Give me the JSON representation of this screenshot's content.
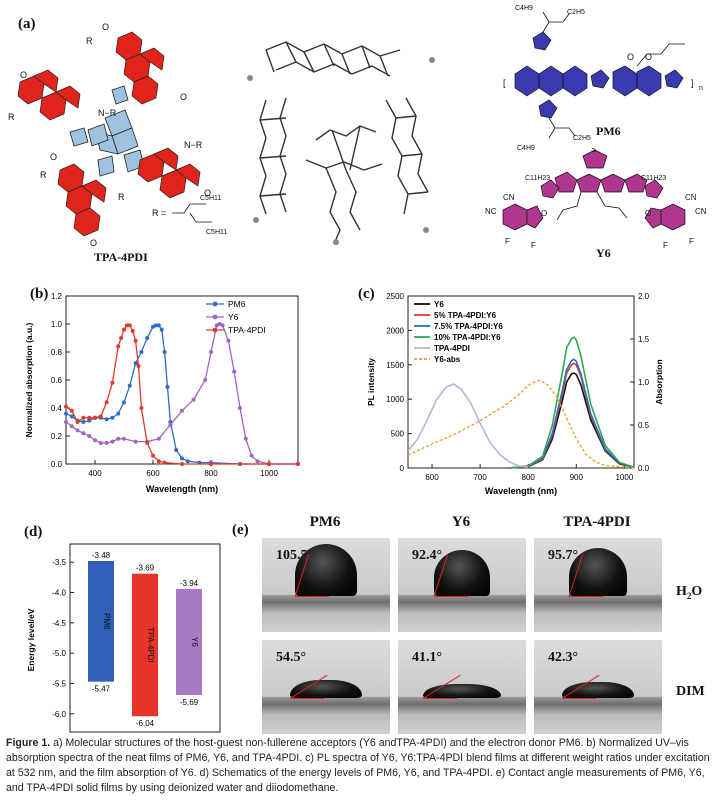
{
  "panels": {
    "a": "(a)",
    "b": "(b)",
    "c": "(c)",
    "d": "(d)",
    "e": "(e)"
  },
  "panel_a": {
    "tpa_label": "TPA-4PDI",
    "pm6_label": "PM6",
    "y6_label": "Y6",
    "r_group": "R =",
    "chain_a": "C5H11",
    "chain_b": "C5H11",
    "pm6_chain_1": "C4H9",
    "pm6_chain_2": "C2H5",
    "y6_chain_1": "C11H23",
    "y6_chain_2": "C11H23",
    "colors": {
      "pdi": "#e0241c",
      "pm6": "#3a3ab0",
      "y6": "#b0368f"
    }
  },
  "chart_data": [
    {
      "type": "line",
      "panel": "b",
      "xlabel": "Wavelength (nm)",
      "ylabel": "Normalized absorption (a.u.)",
      "xlim": [
        300,
        1100
      ],
      "ylim": [
        0,
        1.2
      ],
      "xticks": [
        "400",
        "600",
        "800",
        "1000"
      ],
      "yticks": [
        "0.0",
        "0.2",
        "0.4",
        "0.6",
        "0.8",
        "1.0",
        "1.2"
      ],
      "legend_position": "top-right",
      "series": [
        {
          "name": "PM6",
          "color": "#2e6bc4",
          "marker": "circle",
          "x": [
            300,
            320,
            340,
            360,
            380,
            400,
            420,
            440,
            460,
            480,
            500,
            520,
            540,
            560,
            580,
            600,
            610,
            620,
            630,
            640,
            650,
            660,
            680,
            700,
            720,
            760,
            800,
            900,
            1000,
            1100
          ],
          "y": [
            0.36,
            0.34,
            0.31,
            0.3,
            0.31,
            0.33,
            0.33,
            0.32,
            0.33,
            0.36,
            0.44,
            0.56,
            0.72,
            0.8,
            0.9,
            0.98,
            0.99,
            0.99,
            0.96,
            0.8,
            0.55,
            0.3,
            0.1,
            0.04,
            0.02,
            0.01,
            0.01,
            0.0,
            0.0,
            0.0
          ]
        },
        {
          "name": "Y6",
          "color": "#a066c4",
          "marker": "circle",
          "x": [
            300,
            320,
            340,
            360,
            380,
            400,
            420,
            440,
            460,
            480,
            500,
            540,
            580,
            620,
            660,
            700,
            740,
            780,
            800,
            820,
            830,
            840,
            860,
            880,
            900,
            920,
            940,
            960,
            1000,
            1100
          ],
          "y": [
            0.3,
            0.27,
            0.24,
            0.22,
            0.2,
            0.17,
            0.15,
            0.15,
            0.16,
            0.18,
            0.18,
            0.16,
            0.16,
            0.18,
            0.28,
            0.38,
            0.46,
            0.6,
            0.8,
            0.99,
            1.0,
            0.99,
            0.88,
            0.66,
            0.4,
            0.18,
            0.06,
            0.02,
            0.0,
            0.0
          ]
        },
        {
          "name": "TPA-4PDI",
          "color": "#e03a2a",
          "marker": "circle",
          "x": [
            300,
            320,
            340,
            360,
            380,
            400,
            420,
            440,
            460,
            480,
            490,
            500,
            510,
            520,
            530,
            540,
            550,
            560,
            580,
            600,
            620,
            640,
            700,
            800,
            900,
            1000,
            1100
          ],
          "y": [
            0.41,
            0.38,
            0.3,
            0.33,
            0.33,
            0.33,
            0.34,
            0.44,
            0.58,
            0.84,
            0.9,
            0.96,
            0.99,
            0.99,
            0.95,
            0.88,
            0.7,
            0.4,
            0.15,
            0.06,
            0.02,
            0.01,
            0.0,
            0.0,
            0.0,
            0.0,
            0.0
          ]
        }
      ]
    },
    {
      "type": "line",
      "panel": "c",
      "xlabel": "Wavelength (nm)",
      "ylabel": "PL intensity",
      "y2label": "Absorption",
      "xlim": [
        550,
        1020
      ],
      "ylim": [
        0,
        2500
      ],
      "y2lim": [
        0,
        2.0
      ],
      "xticks": [
        "600",
        "700",
        "800",
        "900",
        "1000"
      ],
      "yticks": [
        "0",
        "500",
        "1000",
        "1500",
        "2000",
        "2500"
      ],
      "y2ticks": [
        "0.0",
        "0.5",
        "1.0",
        "1.5",
        "2.0"
      ],
      "legend_position": "top-left",
      "series": [
        {
          "name": "Y6",
          "color": "#111111",
          "x": [
            760,
            800,
            830,
            850,
            870,
            880,
            890,
            895,
            900,
            910,
            930,
            960,
            990,
            1020
          ],
          "y": [
            0,
            20,
            120,
            420,
            950,
            1250,
            1370,
            1380,
            1360,
            1200,
            700,
            250,
            60,
            10
          ]
        },
        {
          "name": "5% TPA-4PDI:Y6",
          "color": "#e03a2a",
          "x": [
            760,
            800,
            830,
            850,
            870,
            880,
            890,
            895,
            900,
            910,
            930,
            960,
            990,
            1020
          ],
          "y": [
            0,
            25,
            130,
            470,
            1050,
            1380,
            1500,
            1520,
            1500,
            1320,
            760,
            270,
            70,
            10
          ]
        },
        {
          "name": "7.5% TPA-4PDI:Y6",
          "color": "#2e6bc4",
          "x": [
            760,
            800,
            830,
            850,
            870,
            880,
            890,
            895,
            900,
            910,
            930,
            960,
            990,
            1020
          ],
          "y": [
            0,
            25,
            140,
            500,
            1100,
            1430,
            1560,
            1580,
            1550,
            1360,
            790,
            280,
            70,
            10
          ]
        },
        {
          "name": "10% TPA-4PDI:Y6",
          "color": "#2fa84f",
          "x": [
            760,
            800,
            830,
            850,
            870,
            880,
            890,
            895,
            900,
            910,
            930,
            960,
            990,
            1020
          ],
          "y": [
            0,
            30,
            170,
            620,
            1350,
            1750,
            1880,
            1900,
            1860,
            1620,
            930,
            330,
            80,
            10
          ]
        },
        {
          "name": "TPA-4PDI",
          "color": "#b8b2dc",
          "x": [
            550,
            570,
            590,
            610,
            630,
            645,
            660,
            680,
            700,
            720,
            740,
            760,
            780,
            800
          ],
          "y": [
            250,
            420,
            700,
            1000,
            1180,
            1220,
            1150,
            950,
            650,
            380,
            200,
            90,
            30,
            10
          ]
        },
        {
          "name": "Y6-abs",
          "color": "#f29a2a",
          "dashed": true,
          "axis": "right",
          "x": [
            550,
            600,
            650,
            700,
            750,
            780,
            800,
            820,
            830,
            840,
            860,
            880,
            900,
            920,
            940,
            960,
            980,
            1000,
            1020
          ],
          "y": [
            0.15,
            0.28,
            0.4,
            0.55,
            0.72,
            0.85,
            0.96,
            1.02,
            1.0,
            0.97,
            0.82,
            0.58,
            0.34,
            0.16,
            0.07,
            0.03,
            0.02,
            0.01,
            0.0
          ]
        }
      ]
    },
    {
      "type": "bar",
      "panel": "d",
      "ylabel": "Energy level/eV",
      "ylim": [
        -6.3,
        -3.2
      ],
      "yticks": [
        "-3.5",
        "-4.0",
        "-4.5",
        "-5.0",
        "-5.5",
        "-6.0"
      ],
      "bars": [
        {
          "name": "PM6",
          "lumo": -3.48,
          "homo": -5.47,
          "lumo_label": "-3.48",
          "homo_label": "-5.47",
          "color": "#2f5fb8"
        },
        {
          "name": "TPA-4PDI",
          "lumo": -3.69,
          "homo": -6.04,
          "lumo_label": "-3.69",
          "homo_label": "-6.04",
          "color": "#e8332a"
        },
        {
          "name": "Y6",
          "lumo": -3.94,
          "homo": -5.69,
          "lumo_label": "-3.94",
          "homo_label": "-5.69",
          "color": "#a77ac2"
        }
      ]
    }
  ],
  "panel_e": {
    "columns": [
      "PM6",
      "Y6",
      "TPA-4PDI"
    ],
    "rows": [
      "H2O",
      "DIM"
    ],
    "angles": [
      [
        "105.5°",
        "92.4°",
        "95.7°"
      ],
      [
        "54.5°",
        "41.1°",
        "42.3°"
      ]
    ]
  },
  "caption": {
    "label": "Figure 1.",
    "text": " a) Molecular structures of the host-guest non-fullerene acceptors (Y6 andTPA-4PDI) and the electron donor PM6. b) Normalized UV–vis absorption spectra of the neat films of PM6, Y6, and TPA-4PDI. c) PL spectra of Y6, Y6:TPA-4PDI blend films at different weight ratios under excitation at 532 nm, and the film absorption of Y6. d) Schematics of the energy levels of PM6, Y6, and TPA-4PDI. e) Contact angle measurements of PM6, Y6, and TPA-4PDI solid films by using deionized water and diiodomethane."
  }
}
